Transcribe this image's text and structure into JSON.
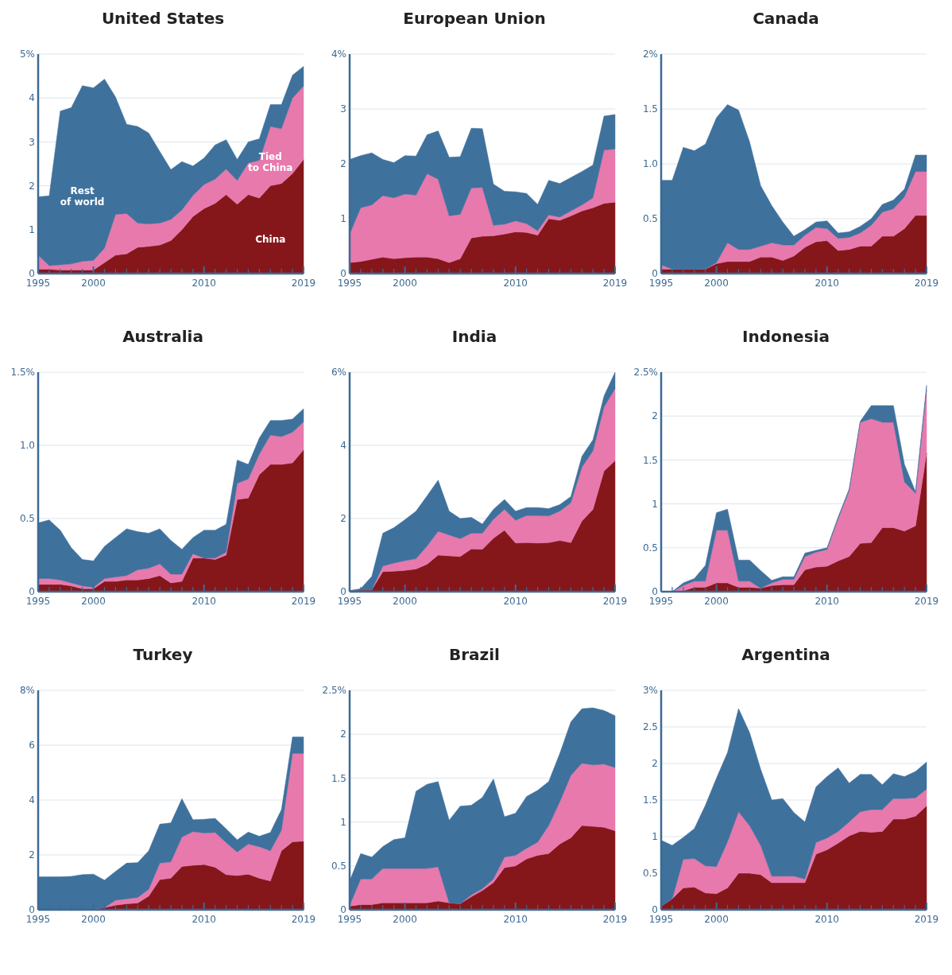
{
  "chart_data": [
    {
      "type": "area",
      "title": "United States",
      "stacked": true,
      "x": [
        1995,
        1996,
        1997,
        1998,
        1999,
        2000,
        2001,
        2002,
        2003,
        2004,
        2005,
        2006,
        2007,
        2008,
        2009,
        2010,
        2011,
        2012,
        2013,
        2014,
        2015,
        2016,
        2017,
        2018,
        2019
      ],
      "xlim": [
        1995,
        2019
      ],
      "xticks": [
        1995,
        {
          "value": 1996,
          "label": null
        },
        {
          "value": 1997,
          "label": null
        },
        {
          "value": 1998,
          "label": null
        },
        {
          "value": 1999,
          "label": null
        },
        2000,
        {
          "value": 2001,
          "label": null
        },
        {
          "value": 2002,
          "label": null
        },
        {
          "value": 2003,
          "label": null
        },
        {
          "value": 2004,
          "label": null
        },
        {
          "value": 2005,
          "label": null
        },
        {
          "value": 2006,
          "label": null
        },
        {
          "value": 2007,
          "label": null
        },
        {
          "value": 2008,
          "label": null
        },
        {
          "value": 2009,
          "label": null
        },
        2010,
        {
          "value": 2011,
          "label": null
        },
        {
          "value": 2012,
          "label": null
        },
        {
          "value": 2013,
          "label": null
        },
        {
          "value": 2014,
          "label": null
        },
        {
          "value": 2015,
          "label": null
        },
        {
          "value": 2016,
          "label": null
        },
        {
          "value": 2017,
          "label": null
        },
        {
          "value": 2018,
          "label": null
        },
        2019
      ],
      "ylim": [
        0,
        5
      ],
      "yticks": [
        0,
        1,
        2,
        3,
        4,
        {
          "value": 5,
          "label": "5%"
        }
      ],
      "grid": "y",
      "series": [
        {
          "name": "China",
          "color": "#85171b",
          "values": [
            0.1,
            0.1,
            0.08,
            0.08,
            0.08,
            0.08,
            0.25,
            0.42,
            0.45,
            0.6,
            0.62,
            0.65,
            0.75,
            1.0,
            1.3,
            1.48,
            1.6,
            1.8,
            1.58,
            1.8,
            1.72,
            2.0,
            2.05,
            2.28,
            2.6
          ]
        },
        {
          "name": "Tied to China",
          "color": "#e779ad",
          "values": [
            0.32,
            0.08,
            0.12,
            0.14,
            0.2,
            0.22,
            0.33,
            0.93,
            0.92,
            0.55,
            0.51,
            0.5,
            0.48,
            0.45,
            0.48,
            0.55,
            0.55,
            0.58,
            0.54,
            0.72,
            0.86,
            1.35,
            1.25,
            1.72,
            1.67
          ]
        },
        {
          "name": "Rest of world",
          "color": "#3f719d",
          "values": [
            1.33,
            1.59,
            3.5,
            3.56,
            4.0,
            3.93,
            3.85,
            2.67,
            2.03,
            2.2,
            2.07,
            1.63,
            1.14,
            1.1,
            0.67,
            0.6,
            0.78,
            0.67,
            0.48,
            0.48,
            0.49,
            0.5,
            0.55,
            0.52,
            0.45
          ]
        }
      ]
    },
    {
      "type": "area",
      "title": "European Union",
      "stacked": true,
      "x": [
        1995,
        1996,
        1997,
        1998,
        1999,
        2000,
        2001,
        2002,
        2003,
        2004,
        2005,
        2006,
        2007,
        2008,
        2009,
        2010,
        2011,
        2012,
        2013,
        2014,
        2015,
        2016,
        2017,
        2018,
        2019
      ],
      "xlim": [
        1995,
        2019
      ],
      "xticks": [
        1995,
        {
          "value": 1996,
          "label": null
        },
        {
          "value": 1997,
          "label": null
        },
        {
          "value": 1998,
          "label": null
        },
        {
          "value": 1999,
          "label": null
        },
        2000,
        {
          "value": 2001,
          "label": null
        },
        {
          "value": 2002,
          "label": null
        },
        {
          "value": 2003,
          "label": null
        },
        {
          "value": 2004,
          "label": null
        },
        {
          "value": 2005,
          "label": null
        },
        {
          "value": 2006,
          "label": null
        },
        {
          "value": 2007,
          "label": null
        },
        {
          "value": 2008,
          "label": null
        },
        {
          "value": 2009,
          "label": null
        },
        2010,
        {
          "value": 2011,
          "label": null
        },
        {
          "value": 2012,
          "label": null
        },
        {
          "value": 2013,
          "label": null
        },
        {
          "value": 2014,
          "label": null
        },
        {
          "value": 2015,
          "label": null
        },
        {
          "value": 2016,
          "label": null
        },
        {
          "value": 2017,
          "label": null
        },
        {
          "value": 2018,
          "label": null
        },
        2019
      ],
      "ylim": [
        0,
        4
      ],
      "yticks": [
        0,
        1,
        2,
        3,
        {
          "value": 4,
          "label": "4%"
        }
      ],
      "grid": "y",
      "series": [
        {
          "color": "#85171b",
          "values": [
            0.2,
            0.22,
            0.26,
            0.3,
            0.27,
            0.29,
            0.3,
            0.3,
            0.27,
            0.2,
            0.27,
            0.65,
            0.68,
            0.69,
            0.72,
            0.76,
            0.75,
            0.7,
            1.0,
            0.97,
            1.05,
            1.14,
            1.2,
            1.28,
            1.3
          ]
        },
        {
          "color": "#e779ad",
          "values": [
            0.52,
            0.98,
            0.99,
            1.12,
            1.11,
            1.16,
            1.13,
            1.52,
            1.45,
            0.85,
            0.81,
            0.91,
            0.89,
            0.19,
            0.18,
            0.2,
            0.16,
            0.08,
            0.07,
            0.06,
            0.09,
            0.11,
            0.18,
            0.97,
            0.97
          ]
        },
        {
          "color": "#3f719d",
          "values": [
            1.36,
            0.95,
            0.95,
            0.66,
            0.64,
            0.7,
            0.71,
            0.71,
            0.88,
            1.07,
            1.05,
            1.09,
            1.07,
            0.75,
            0.6,
            0.53,
            0.55,
            0.48,
            0.63,
            0.61,
            0.61,
            0.61,
            0.6,
            0.62,
            0.63
          ]
        }
      ]
    },
    {
      "type": "area",
      "title": "Canada",
      "stacked": true,
      "x": [
        1995,
        1996,
        1997,
        1998,
        1999,
        2000,
        2001,
        2002,
        2003,
        2004,
        2005,
        2006,
        2007,
        2008,
        2009,
        2010,
        2011,
        2012,
        2013,
        2014,
        2015,
        2016,
        2017,
        2018,
        2019
      ],
      "xlim": [
        1995,
        2019
      ],
      "xticks": [
        1995,
        {
          "value": 1996,
          "label": null
        },
        {
          "value": 1997,
          "label": null
        },
        {
          "value": 1998,
          "label": null
        },
        {
          "value": 1999,
          "label": null
        },
        2000,
        {
          "value": 2001,
          "label": null
        },
        {
          "value": 2002,
          "label": null
        },
        {
          "value": 2003,
          "label": null
        },
        {
          "value": 2004,
          "label": null
        },
        {
          "value": 2005,
          "label": null
        },
        {
          "value": 2006,
          "label": null
        },
        {
          "value": 2007,
          "label": null
        },
        {
          "value": 2008,
          "label": null
        },
        {
          "value": 2009,
          "label": null
        },
        2010,
        {
          "value": 2011,
          "label": null
        },
        {
          "value": 2012,
          "label": null
        },
        {
          "value": 2013,
          "label": null
        },
        {
          "value": 2014,
          "label": null
        },
        {
          "value": 2015,
          "label": null
        },
        {
          "value": 2016,
          "label": null
        },
        {
          "value": 2017,
          "label": null
        },
        {
          "value": 2018,
          "label": null
        },
        2019
      ],
      "ylim": [
        0,
        2
      ],
      "yticks": [
        0,
        0.5,
        {
          "value": 1,
          "label": "1.0"
        },
        1.5,
        {
          "value": 2,
          "label": "2%"
        }
      ],
      "grid": "y",
      "series": [
        {
          "color": "#85171b",
          "values": [
            0.04,
            0.04,
            0.04,
            0.04,
            0.04,
            0.09,
            0.11,
            0.11,
            0.11,
            0.15,
            0.15,
            0.12,
            0.16,
            0.24,
            0.29,
            0.3,
            0.21,
            0.22,
            0.25,
            0.25,
            0.34,
            0.34,
            0.41,
            0.53,
            0.53
          ]
        },
        {
          "color": "#e779ad",
          "values": [
            0.04,
            0,
            0,
            0,
            0,
            0.01,
            0.17,
            0.11,
            0.11,
            0.1,
            0.13,
            0.14,
            0.1,
            0.11,
            0.13,
            0.11,
            0.11,
            0.11,
            0.12,
            0.19,
            0.22,
            0.25,
            0.29,
            0.4,
            0.4
          ]
        },
        {
          "color": "#3f719d",
          "values": [
            0.77,
            0.81,
            1.11,
            1.08,
            1.14,
            1.32,
            1.26,
            1.27,
            0.98,
            0.55,
            0.34,
            0.21,
            0.08,
            0.05,
            0.05,
            0.07,
            0.05,
            0.05,
            0.06,
            0.06,
            0.07,
            0.08,
            0.07,
            0.15,
            0.15
          ]
        }
      ]
    },
    {
      "type": "area",
      "title": "Australia",
      "stacked": true,
      "x": [
        1995,
        1996,
        1997,
        1998,
        1999,
        2000,
        2001,
        2002,
        2003,
        2004,
        2005,
        2006,
        2007,
        2008,
        2009,
        2010,
        2011,
        2012,
        2013,
        2014,
        2015,
        2016,
        2017,
        2018,
        2019
      ],
      "xlim": [
        1995,
        2019
      ],
      "xticks": [
        1995,
        {
          "value": 1996,
          "label": null
        },
        {
          "value": 1997,
          "label": null
        },
        {
          "value": 1998,
          "label": null
        },
        {
          "value": 1999,
          "label": null
        },
        2000,
        {
          "value": 2001,
          "label": null
        },
        {
          "value": 2002,
          "label": null
        },
        {
          "value": 2003,
          "label": null
        },
        {
          "value": 2004,
          "label": null
        },
        {
          "value": 2005,
          "label": null
        },
        {
          "value": 2006,
          "label": null
        },
        {
          "value": 2007,
          "label": null
        },
        {
          "value": 2008,
          "label": null
        },
        {
          "value": 2009,
          "label": null
        },
        2010,
        {
          "value": 2011,
          "label": null
        },
        {
          "value": 2012,
          "label": null
        },
        {
          "value": 2013,
          "label": null
        },
        {
          "value": 2014,
          "label": null
        },
        {
          "value": 2015,
          "label": null
        },
        {
          "value": 2016,
          "label": null
        },
        {
          "value": 2017,
          "label": null
        },
        {
          "value": 2018,
          "label": null
        },
        2019
      ],
      "ylim": [
        0,
        1.5
      ],
      "yticks": [
        0,
        0.5,
        {
          "value": 1,
          "label": "1.0"
        },
        {
          "value": 1.5,
          "label": "1.5%"
        }
      ],
      "grid": "y",
      "series": [
        {
          "color": "#85171b",
          "values": [
            0.05,
            0.05,
            0.05,
            0.04,
            0.02,
            0.02,
            0.07,
            0.07,
            0.08,
            0.08,
            0.09,
            0.11,
            0.06,
            0.07,
            0.23,
            0.23,
            0.22,
            0.25,
            0.63,
            0.64,
            0.8,
            0.87,
            0.87,
            0.88,
            0.97
          ]
        },
        {
          "color": "#e779ad",
          "values": [
            0.04,
            0.04,
            0.03,
            0.02,
            0.02,
            0.01,
            0.02,
            0.03,
            0.03,
            0.07,
            0.07,
            0.08,
            0.06,
            0.05,
            0.03,
            0,
            0.01,
            0.02,
            0.11,
            0.13,
            0.14,
            0.2,
            0.19,
            0.21,
            0.19
          ]
        },
        {
          "color": "#3f719d",
          "values": [
            0.38,
            0.4,
            0.34,
            0.24,
            0.18,
            0.18,
            0.22,
            0.27,
            0.32,
            0.26,
            0.24,
            0.24,
            0.23,
            0.17,
            0.11,
            0.19,
            0.19,
            0.19,
            0.16,
            0.1,
            0.11,
            0.1,
            0.11,
            0.09,
            0.09
          ]
        }
      ]
    },
    {
      "type": "area",
      "title": "India",
      "stacked": true,
      "x": [
        1995,
        1996,
        1997,
        1998,
        1999,
        2000,
        2001,
        2002,
        2003,
        2004,
        2005,
        2006,
        2007,
        2008,
        2009,
        2010,
        2011,
        2012,
        2013,
        2014,
        2015,
        2016,
        2017,
        2018,
        2019
      ],
      "xlim": [
        1995,
        2019
      ],
      "xticks": [
        1995,
        {
          "value": 1996,
          "label": null
        },
        {
          "value": 1997,
          "label": null
        },
        {
          "value": 1998,
          "label": null
        },
        {
          "value": 1999,
          "label": null
        },
        2000,
        {
          "value": 2001,
          "label": null
        },
        {
          "value": 2002,
          "label": null
        },
        {
          "value": 2003,
          "label": null
        },
        {
          "value": 2004,
          "label": null
        },
        {
          "value": 2005,
          "label": null
        },
        {
          "value": 2006,
          "label": null
        },
        {
          "value": 2007,
          "label": null
        },
        {
          "value": 2008,
          "label": null
        },
        {
          "value": 2009,
          "label": null
        },
        2010,
        {
          "value": 2011,
          "label": null
        },
        {
          "value": 2012,
          "label": null
        },
        {
          "value": 2013,
          "label": null
        },
        {
          "value": 2014,
          "label": null
        },
        {
          "value": 2015,
          "label": null
        },
        {
          "value": 2016,
          "label": null
        },
        {
          "value": 2017,
          "label": null
        },
        {
          "value": 2018,
          "label": null
        },
        2019
      ],
      "ylim": [
        0,
        6
      ],
      "yticks": [
        0,
        2,
        4,
        {
          "value": 6,
          "label": "6%"
        }
      ],
      "grid": "y",
      "series": [
        {
          "color": "#85171b",
          "values": [
            0.02,
            0.05,
            0.05,
            0.55,
            0.56,
            0.58,
            0.62,
            0.75,
            1.0,
            0.98,
            0.96,
            1.17,
            1.16,
            1.46,
            1.68,
            1.33,
            1.34,
            1.33,
            1.34,
            1.4,
            1.34,
            1.93,
            2.25,
            3.3,
            3.58
          ]
        },
        {
          "color": "#e779ad",
          "values": [
            0,
            0,
            0,
            0.15,
            0.22,
            0.27,
            0.28,
            0.5,
            0.65,
            0.57,
            0.49,
            0.43,
            0.44,
            0.52,
            0.57,
            0.62,
            0.74,
            0.75,
            0.73,
            0.8,
            1.09,
            1.47,
            1.6,
            1.75,
            1.97
          ]
        },
        {
          "color": "#3f719d",
          "values": [
            0.01,
            0.03,
            0.37,
            0.9,
            0.97,
            1.12,
            1.3,
            1.37,
            1.4,
            0.65,
            0.55,
            0.43,
            0.25,
            0.27,
            0.27,
            0.25,
            0.22,
            0.22,
            0.2,
            0.18,
            0.17,
            0.3,
            0.3,
            0.3,
            0.45
          ]
        }
      ]
    },
    {
      "type": "area",
      "title": "Indonesia",
      "stacked": true,
      "x": [
        1995,
        1996,
        1997,
        1998,
        1999,
        2000,
        2001,
        2002,
        2003,
        2004,
        2005,
        2006,
        2007,
        2008,
        2009,
        2010,
        2011,
        2012,
        2013,
        2014,
        2015,
        2016,
        2017,
        2018,
        2019
      ],
      "xlim": [
        1995,
        2019
      ],
      "xticks": [
        1995,
        {
          "value": 1996,
          "label": null
        },
        {
          "value": 1997,
          "label": null
        },
        {
          "value": 1998,
          "label": null
        },
        {
          "value": 1999,
          "label": null
        },
        2000,
        {
          "value": 2001,
          "label": null
        },
        {
          "value": 2002,
          "label": null
        },
        {
          "value": 2003,
          "label": null
        },
        {
          "value": 2004,
          "label": null
        },
        {
          "value": 2005,
          "label": null
        },
        {
          "value": 2006,
          "label": null
        },
        {
          "value": 2007,
          "label": null
        },
        {
          "value": 2008,
          "label": null
        },
        {
          "value": 2009,
          "label": null
        },
        2010,
        {
          "value": 2011,
          "label": null
        },
        {
          "value": 2012,
          "label": null
        },
        {
          "value": 2013,
          "label": null
        },
        {
          "value": 2014,
          "label": null
        },
        {
          "value": 2015,
          "label": null
        },
        {
          "value": 2016,
          "label": null
        },
        {
          "value": 2017,
          "label": null
        },
        {
          "value": 2018,
          "label": null
        },
        2019
      ],
      "ylim": [
        0,
        2.5
      ],
      "yticks": [
        0,
        0.5,
        1,
        1.5,
        2,
        {
          "value": 2.5,
          "label": "2.5%"
        }
      ],
      "grid": "y",
      "series": [
        {
          "color": "#85171b",
          "values": [
            0,
            0,
            0.01,
            0.05,
            0.05,
            0.1,
            0.1,
            0.05,
            0.05,
            0.04,
            0.07,
            0.08,
            0.08,
            0.25,
            0.28,
            0.29,
            0.35,
            0.4,
            0.55,
            0.56,
            0.73,
            0.73,
            0.69,
            0.75,
            1.58
          ]
        },
        {
          "color": "#e779ad",
          "values": [
            0,
            0,
            0.06,
            0.07,
            0.07,
            0.6,
            0.6,
            0.07,
            0.07,
            0,
            0.03,
            0.06,
            0.06,
            0.15,
            0.17,
            0.19,
            0.48,
            0.75,
            1.38,
            1.41,
            1.2,
            1.2,
            0.56,
            0.37,
            0.72
          ]
        },
        {
          "color": "#3f719d",
          "values": [
            0,
            0,
            0.03,
            0.03,
            0.18,
            0.2,
            0.24,
            0.24,
            0.24,
            0.2,
            0.03,
            0.03,
            0.03,
            0.04,
            0.02,
            0.02,
            0.02,
            0.02,
            0.01,
            0.15,
            0.19,
            0.19,
            0.2,
            0.02,
            0.05
          ]
        }
      ]
    },
    {
      "type": "area",
      "title": "Turkey",
      "stacked": true,
      "x": [
        1995,
        1996,
        1997,
        1998,
        1999,
        2000,
        2001,
        2002,
        2003,
        2004,
        2005,
        2006,
        2007,
        2008,
        2009,
        2010,
        2011,
        2012,
        2013,
        2014,
        2015,
        2016,
        2017,
        2018,
        2019
      ],
      "xlim": [
        1995,
        2019
      ],
      "xticks": [
        1995,
        {
          "value": 1996,
          "label": null
        },
        {
          "value": 1997,
          "label": null
        },
        {
          "value": 1998,
          "label": null
        },
        {
          "value": 1999,
          "label": null
        },
        2000,
        {
          "value": 2001,
          "label": null
        },
        {
          "value": 2002,
          "label": null
        },
        {
          "value": 2003,
          "label": null
        },
        {
          "value": 2004,
          "label": null
        },
        {
          "value": 2005,
          "label": null
        },
        {
          "value": 2006,
          "label": null
        },
        {
          "value": 2007,
          "label": null
        },
        {
          "value": 2008,
          "label": null
        },
        {
          "value": 2009,
          "label": null
        },
        2010,
        {
          "value": 2011,
          "label": null
        },
        {
          "value": 2012,
          "label": null
        },
        {
          "value": 2013,
          "label": null
        },
        {
          "value": 2014,
          "label": null
        },
        {
          "value": 2015,
          "label": null
        },
        {
          "value": 2016,
          "label": null
        },
        {
          "value": 2017,
          "label": null
        },
        {
          "value": 2018,
          "label": null
        },
        2019
      ],
      "ylim": [
        0,
        8
      ],
      "yticks": [
        0,
        2,
        4,
        6,
        {
          "value": 8,
          "label": "8%"
        }
      ],
      "grid": "y",
      "series": [
        {
          "color": "#85171b",
          "values": [
            0.02,
            0.02,
            0.02,
            0.02,
            0.02,
            0.03,
            0.08,
            0.17,
            0.22,
            0.25,
            0.5,
            1.1,
            1.15,
            1.58,
            1.62,
            1.65,
            1.55,
            1.28,
            1.25,
            1.3,
            1.15,
            1.05,
            2.15,
            2.48,
            2.5
          ]
        },
        {
          "color": "#e779ad",
          "values": [
            0,
            0,
            0,
            0,
            0,
            0,
            0,
            0.18,
            0.18,
            0.2,
            0.25,
            0.6,
            0.6,
            1.07,
            1.23,
            1.15,
            1.27,
            1.17,
            0.85,
            1.1,
            1.15,
            1.1,
            0.75,
            3.22,
            3.2
          ]
        },
        {
          "color": "#3f719d",
          "values": [
            1.18,
            1.18,
            1.18,
            1.2,
            1.26,
            1.27,
            1.0,
            1.05,
            1.3,
            1.27,
            1.4,
            1.42,
            1.42,
            1.4,
            0.43,
            0.5,
            0.51,
            0.5,
            0.45,
            0.43,
            0.38,
            0.67,
            0.75,
            0.6,
            0.6
          ]
        }
      ]
    },
    {
      "type": "area",
      "title": "Brazil",
      "stacked": true,
      "x": [
        1995,
        1996,
        1997,
        1998,
        1999,
        2000,
        2001,
        2002,
        2003,
        2004,
        2005,
        2006,
        2007,
        2008,
        2009,
        2010,
        2011,
        2012,
        2013,
        2014,
        2015,
        2016,
        2017,
        2018,
        2019
      ],
      "xlim": [
        1995,
        2019
      ],
      "xticks": [
        1995,
        {
          "value": 1996,
          "label": null
        },
        {
          "value": 1997,
          "label": null
        },
        {
          "value": 1998,
          "label": null
        },
        {
          "value": 1999,
          "label": null
        },
        2000,
        {
          "value": 2001,
          "label": null
        },
        {
          "value": 2002,
          "label": null
        },
        {
          "value": 2003,
          "label": null
        },
        {
          "value": 2004,
          "label": null
        },
        {
          "value": 2005,
          "label": null
        },
        {
          "value": 2006,
          "label": null
        },
        {
          "value": 2007,
          "label": null
        },
        {
          "value": 2008,
          "label": null
        },
        {
          "value": 2009,
          "label": null
        },
        2010,
        {
          "value": 2011,
          "label": null
        },
        {
          "value": 2012,
          "label": null
        },
        {
          "value": 2013,
          "label": null
        },
        {
          "value": 2014,
          "label": null
        },
        {
          "value": 2015,
          "label": null
        },
        {
          "value": 2016,
          "label": null
        },
        {
          "value": 2017,
          "label": null
        },
        {
          "value": 2018,
          "label": null
        },
        2019
      ],
      "ylim": [
        0,
        2.5
      ],
      "yticks": [
        0,
        0.5,
        1,
        1.5,
        2,
        {
          "value": 2.5,
          "label": "2.5%"
        }
      ],
      "grid": "y",
      "series": [
        {
          "color": "#85171b",
          "values": [
            0.04,
            0.06,
            0.06,
            0.08,
            0.08,
            0.08,
            0.08,
            0.08,
            0.1,
            0.08,
            0.07,
            0.15,
            0.22,
            0.31,
            0.48,
            0.5,
            0.58,
            0.62,
            0.64,
            0.75,
            0.82,
            0.96,
            0.95,
            0.94,
            0.9
          ]
        },
        {
          "color": "#e779ad",
          "values": [
            0.01,
            0.29,
            0.29,
            0.39,
            0.39,
            0.39,
            0.39,
            0.39,
            0.39,
            0,
            0,
            0.02,
            0.02,
            0.04,
            0.12,
            0.12,
            0.12,
            0.15,
            0.32,
            0.48,
            0.71,
            0.71,
            0.7,
            0.72,
            0.72
          ]
        },
        {
          "color": "#3f719d",
          "values": [
            0.28,
            0.29,
            0.25,
            0.25,
            0.33,
            0.35,
            0.88,
            0.96,
            0.97,
            0.94,
            1.11,
            1.02,
            1.04,
            1.14,
            0.46,
            0.48,
            0.59,
            0.59,
            0.5,
            0.55,
            0.61,
            0.62,
            0.65,
            0.61,
            0.59
          ]
        }
      ]
    },
    {
      "type": "area",
      "title": "Argentina",
      "stacked": true,
      "x": [
        1995,
        1996,
        1997,
        1998,
        1999,
        2000,
        2001,
        2002,
        2003,
        2004,
        2005,
        2006,
        2007,
        2008,
        2009,
        2010,
        2011,
        2012,
        2013,
        2014,
        2015,
        2016,
        2017,
        2018,
        2019
      ],
      "xlim": [
        1995,
        2019
      ],
      "xticks": [
        1995,
        {
          "value": 1996,
          "label": null
        },
        {
          "value": 1997,
          "label": null
        },
        {
          "value": 1998,
          "label": null
        },
        {
          "value": 1999,
          "label": null
        },
        2000,
        {
          "value": 2001,
          "label": null
        },
        {
          "value": 2002,
          "label": null
        },
        {
          "value": 2003,
          "label": null
        },
        {
          "value": 2004,
          "label": null
        },
        {
          "value": 2005,
          "label": null
        },
        {
          "value": 2006,
          "label": null
        },
        {
          "value": 2007,
          "label": null
        },
        {
          "value": 2008,
          "label": null
        },
        {
          "value": 2009,
          "label": null
        },
        2010,
        {
          "value": 2011,
          "label": null
        },
        {
          "value": 2012,
          "label": null
        },
        {
          "value": 2013,
          "label": null
        },
        {
          "value": 2014,
          "label": null
        },
        {
          "value": 2015,
          "label": null
        },
        {
          "value": 2016,
          "label": null
        },
        {
          "value": 2017,
          "label": null
        },
        {
          "value": 2018,
          "label": null
        },
        2019
      ],
      "ylim": [
        0,
        3
      ],
      "yticks": [
        0,
        0.5,
        1,
        1.5,
        2,
        2.5,
        {
          "value": 3,
          "label": "3%"
        }
      ],
      "grid": "y",
      "series": [
        {
          "color": "#85171b",
          "values": [
            0.05,
            0.15,
            0.3,
            0.31,
            0.23,
            0.22,
            0.3,
            0.5,
            0.5,
            0.48,
            0.37,
            0.37,
            0.37,
            0.37,
            0.76,
            0.82,
            0.91,
            1.01,
            1.07,
            1.06,
            1.07,
            1.24,
            1.24,
            1.28,
            1.42
          ]
        },
        {
          "color": "#e779ad",
          "values": [
            0,
            0,
            0.39,
            0.39,
            0.37,
            0.37,
            0.63,
            0.84,
            0.65,
            0.4,
            0.09,
            0.09,
            0.09,
            0.05,
            0.16,
            0.16,
            0.16,
            0.19,
            0.27,
            0.31,
            0.3,
            0.28,
            0.28,
            0.25,
            0.23
          ]
        },
        {
          "color": "#3f719d",
          "values": [
            0.9,
            0.73,
            0.3,
            0.41,
            0.83,
            1.21,
            1.22,
            1.41,
            1.27,
            1.04,
            1.04,
            1.06,
            0.87,
            0.78,
            0.76,
            0.84,
            0.87,
            0.53,
            0.51,
            0.48,
            0.34,
            0.34,
            0.3,
            0.36,
            0.37
          ]
        }
      ]
    }
  ]
}
